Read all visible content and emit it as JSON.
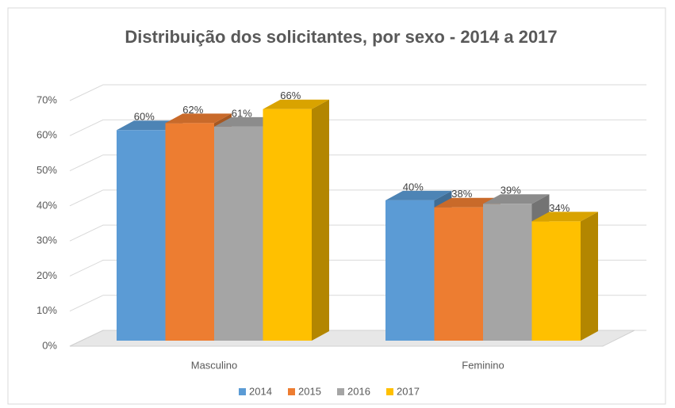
{
  "chart_data": {
    "type": "bar3d",
    "title": "Distribuição dos solicitantes, por sexo - 2014 a 2017",
    "categories": [
      "Masculino",
      "Feminino"
    ],
    "series": [
      {
        "name": "2014",
        "color": "#5b9bd5",
        "values": [
          60,
          40
        ],
        "value_labels": [
          "60%",
          "40%"
        ]
      },
      {
        "name": "2015",
        "color": "#ed7d31",
        "values": [
          62,
          38
        ],
        "value_labels": [
          "62%",
          "38%"
        ]
      },
      {
        "name": "2016",
        "color": "#a5a5a5",
        "values": [
          61,
          39
        ],
        "value_labels": [
          "61%",
          "39%"
        ]
      },
      {
        "name": "2017",
        "color": "#ffc000",
        "values": [
          66,
          34
        ],
        "value_labels": [
          "66%",
          "34%"
        ]
      }
    ],
    "ylim": [
      0,
      70
    ],
    "yticks": [
      {
        "value": 0,
        "label": "0%"
      },
      {
        "value": 10,
        "label": "10%"
      },
      {
        "value": 20,
        "label": "20%"
      },
      {
        "value": 30,
        "label": "30%"
      },
      {
        "value": 40,
        "label": "40%"
      },
      {
        "value": 50,
        "label": "50%"
      },
      {
        "value": 60,
        "label": "60%"
      },
      {
        "value": 70,
        "label": "70%"
      }
    ],
    "grid": true,
    "legend": "bottom"
  }
}
